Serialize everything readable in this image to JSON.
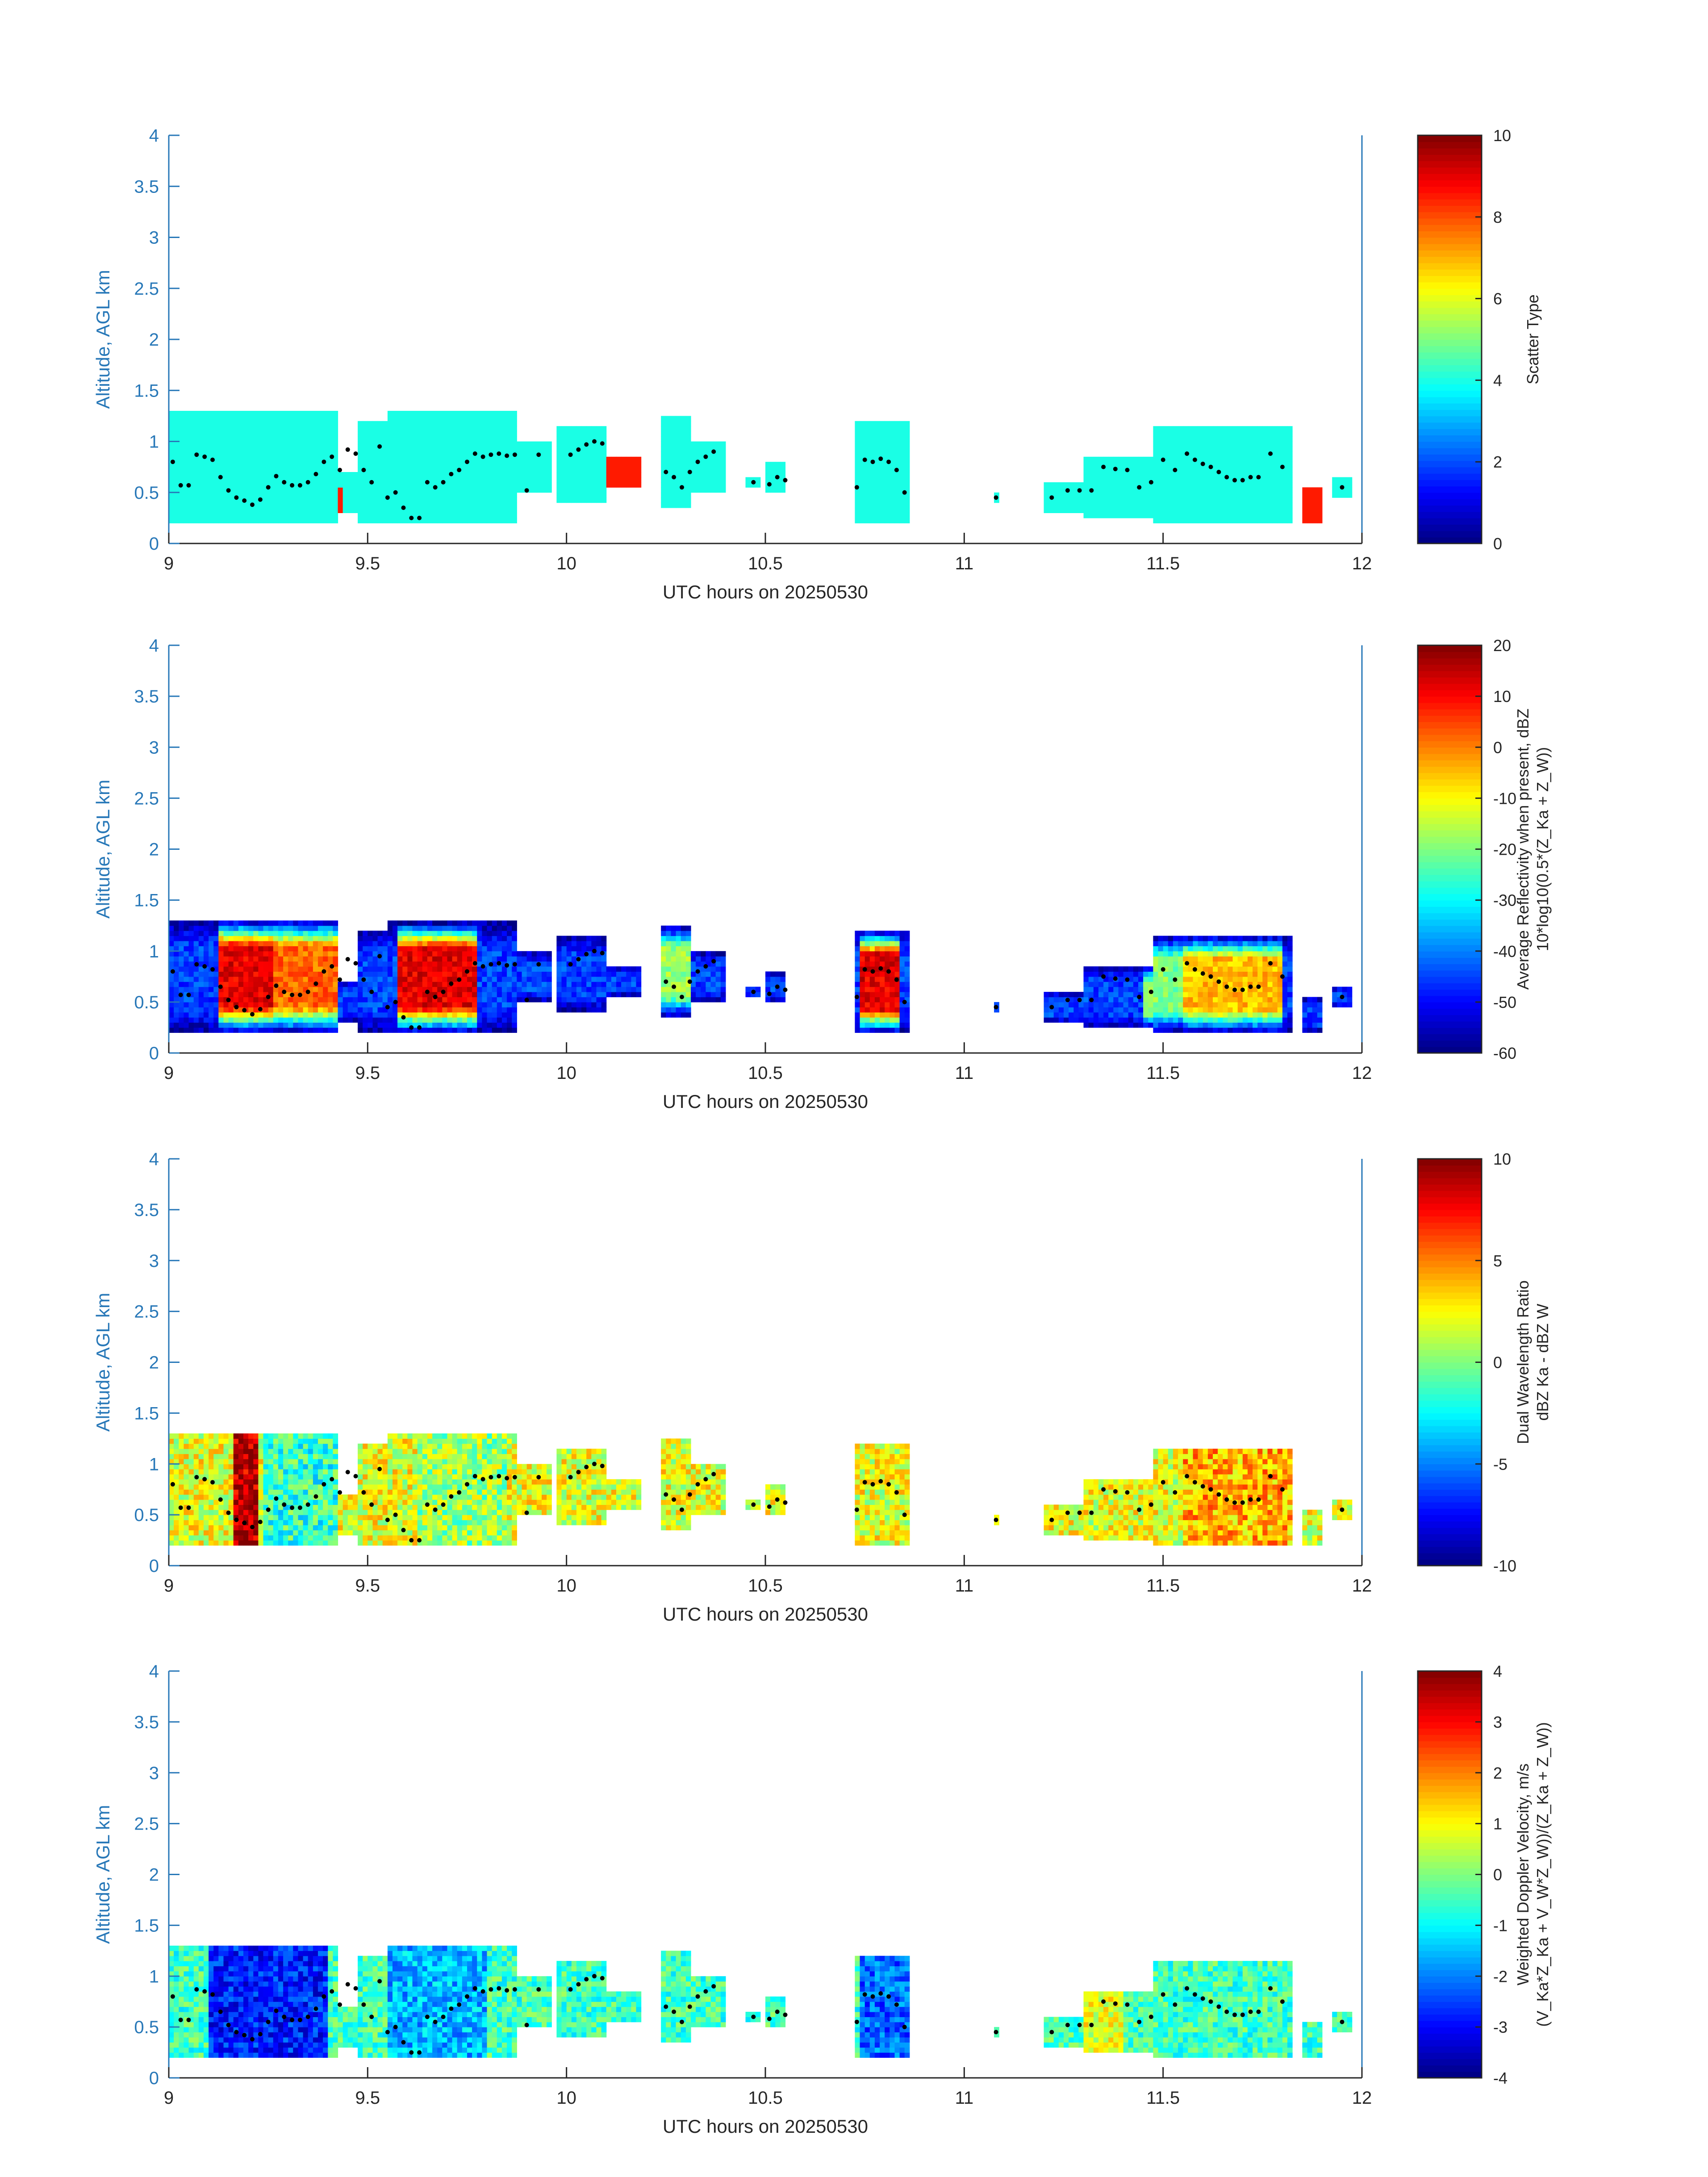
{
  "figure": {
    "y_tick_labels": [
      "0",
      "0.5",
      "1",
      "1.5",
      "2",
      "2.5",
      "3",
      "3.5",
      "4"
    ],
    "x_tick_labels": [
      "9",
      "9.5",
      "10",
      "10.5",
      "11",
      "11.5",
      "12"
    ]
  },
  "chart_data": [
    {
      "type": "heatmap",
      "title": "",
      "xlabel": "UTC hours on 20250530",
      "ylabel": "Altitude, AGL km",
      "xlim": [
        9,
        12
      ],
      "ylim": [
        0,
        4
      ],
      "colorbar": {
        "label_lines": [
          "Scatter Type"
        ],
        "range": [
          0,
          10
        ],
        "ticks": [
          "0",
          "2",
          "4",
          "6",
          "8",
          "10"
        ]
      },
      "field": "scatter_type",
      "cloud_top_dots": true
    },
    {
      "type": "heatmap",
      "title": "",
      "xlabel": "UTC hours on 20250530",
      "ylabel": "Altitude, AGL km",
      "xlim": [
        9,
        12
      ],
      "ylim": [
        0,
        4
      ],
      "colorbar": {
        "label_lines": [
          "Average Reflectivity when present, dBZ",
          "10*log10(0.5*(Z_Ka + Z_W))"
        ],
        "range": [
          -60,
          20
        ],
        "ticks": [
          "-60",
          "-50",
          "-40",
          "-30",
          "-20",
          "-10",
          "0",
          "10",
          "20"
        ]
      },
      "field": "reflectivity",
      "cloud_top_dots": true
    },
    {
      "type": "heatmap",
      "title": "",
      "xlabel": "UTC hours on 20250530",
      "ylabel": "Altitude, AGL km",
      "xlim": [
        9,
        12
      ],
      "ylim": [
        0,
        4
      ],
      "colorbar": {
        "label_lines": [
          "Dual Wavelength Ratio",
          "dBZ Ka - dBZ W"
        ],
        "range": [
          -10,
          10
        ],
        "ticks": [
          "-10",
          "-5",
          "0",
          "5",
          "10"
        ]
      },
      "field": "dwr",
      "cloud_top_dots": true
    },
    {
      "type": "heatmap",
      "title": "",
      "xlabel": "UTC hours on 20250530",
      "ylabel": "Altitude, AGL km",
      "xlim": [
        9,
        12
      ],
      "ylim": [
        0,
        4
      ],
      "colorbar": {
        "label_lines": [
          "Weighted Doppler Velocity, m/s",
          "(V_Ka*Z_Ka + V_W*Z_W))/(Z_Ka + Z_W))"
        ],
        "range": [
          -4,
          4
        ],
        "ticks": [
          "-4",
          "-3",
          "-2",
          "-1",
          "0",
          "1",
          "2",
          "3",
          "4"
        ]
      },
      "field": "velocity",
      "cloud_top_dots": true
    }
  ],
  "echo_segments": [
    {
      "t0": 9.0,
      "t1": 9.42,
      "top": 1.3,
      "base": 0.2
    },
    {
      "t0": 9.42,
      "t1": 9.47,
      "top": 0.7,
      "base": 0.3
    },
    {
      "t0": 9.47,
      "t1": 9.55,
      "top": 1.2,
      "base": 0.2
    },
    {
      "t0": 9.55,
      "t1": 9.88,
      "top": 1.28,
      "base": 0.2
    },
    {
      "t0": 9.88,
      "t1": 9.96,
      "top": 1.0,
      "base": 0.5
    },
    {
      "t0": 9.98,
      "t1": 10.1,
      "top": 1.15,
      "base": 0.4
    },
    {
      "t0": 10.1,
      "t1": 10.19,
      "top": 0.85,
      "base": 0.55
    },
    {
      "t0": 10.24,
      "t1": 10.31,
      "top": 1.25,
      "base": 0.35
    },
    {
      "t0": 10.31,
      "t1": 10.4,
      "top": 1.0,
      "base": 0.5
    },
    {
      "t0": 10.45,
      "t1": 10.49,
      "top": 0.65,
      "base": 0.55
    },
    {
      "t0": 10.5,
      "t1": 10.55,
      "top": 0.8,
      "base": 0.5
    },
    {
      "t0": 10.72,
      "t1": 10.86,
      "top": 1.2,
      "base": 0.2
    },
    {
      "t0": 11.07,
      "t1": 11.09,
      "top": 0.5,
      "base": 0.4
    },
    {
      "t0": 11.2,
      "t1": 11.3,
      "top": 0.6,
      "base": 0.3
    },
    {
      "t0": 11.3,
      "t1": 11.48,
      "top": 0.85,
      "base": 0.25
    },
    {
      "t0": 11.48,
      "t1": 11.82,
      "top": 1.15,
      "base": 0.2
    },
    {
      "t0": 11.85,
      "t1": 11.9,
      "top": 0.55,
      "base": 0.2
    },
    {
      "t0": 11.93,
      "t1": 11.97,
      "top": 0.65,
      "base": 0.45
    }
  ],
  "cloud_top_dots": [
    [
      9.01,
      0.8
    ],
    [
      9.03,
      0.57
    ],
    [
      9.05,
      0.57
    ],
    [
      9.07,
      0.87
    ],
    [
      9.09,
      0.85
    ],
    [
      9.11,
      0.82
    ],
    [
      9.13,
      0.65
    ],
    [
      9.15,
      0.52
    ],
    [
      9.17,
      0.45
    ],
    [
      9.19,
      0.42
    ],
    [
      9.21,
      0.38
    ],
    [
      9.23,
      0.43
    ],
    [
      9.25,
      0.55
    ],
    [
      9.27,
      0.66
    ],
    [
      9.29,
      0.6
    ],
    [
      9.31,
      0.57
    ],
    [
      9.33,
      0.57
    ],
    [
      9.35,
      0.6
    ],
    [
      9.37,
      0.68
    ],
    [
      9.39,
      0.8
    ],
    [
      9.41,
      0.85
    ],
    [
      9.43,
      0.72
    ],
    [
      9.45,
      0.92
    ],
    [
      9.47,
      0.88
    ],
    [
      9.49,
      0.72
    ],
    [
      9.51,
      0.6
    ],
    [
      9.53,
      0.95
    ],
    [
      9.55,
      0.45
    ],
    [
      9.57,
      0.5
    ],
    [
      9.59,
      0.35
    ],
    [
      9.61,
      0.25
    ],
    [
      9.63,
      0.25
    ],
    [
      9.65,
      0.6
    ],
    [
      9.67,
      0.55
    ],
    [
      9.69,
      0.6
    ],
    [
      9.71,
      0.68
    ],
    [
      9.73,
      0.72
    ],
    [
      9.75,
      0.8
    ],
    [
      9.77,
      0.88
    ],
    [
      9.79,
      0.85
    ],
    [
      9.81,
      0.87
    ],
    [
      9.83,
      0.88
    ],
    [
      9.85,
      0.86
    ],
    [
      9.87,
      0.87
    ],
    [
      9.9,
      0.52
    ],
    [
      9.93,
      0.87
    ],
    [
      10.01,
      0.87
    ],
    [
      10.03,
      0.92
    ],
    [
      10.05,
      0.97
    ],
    [
      10.07,
      1.0
    ],
    [
      10.09,
      0.98
    ],
    [
      10.25,
      0.7
    ],
    [
      10.27,
      0.65
    ],
    [
      10.29,
      0.55
    ],
    [
      10.31,
      0.7
    ],
    [
      10.33,
      0.8
    ],
    [
      10.35,
      0.85
    ],
    [
      10.37,
      0.9
    ],
    [
      10.47,
      0.6
    ],
    [
      10.51,
      0.58
    ],
    [
      10.53,
      0.65
    ],
    [
      10.55,
      0.62
    ],
    [
      10.73,
      0.55
    ],
    [
      10.75,
      0.82
    ],
    [
      10.77,
      0.8
    ],
    [
      10.79,
      0.83
    ],
    [
      10.81,
      0.8
    ],
    [
      10.83,
      0.72
    ],
    [
      10.85,
      0.5
    ],
    [
      11.08,
      0.45
    ],
    [
      11.22,
      0.45
    ],
    [
      11.26,
      0.52
    ],
    [
      11.29,
      0.52
    ],
    [
      11.32,
      0.52
    ],
    [
      11.35,
      0.75
    ],
    [
      11.38,
      0.73
    ],
    [
      11.41,
      0.72
    ],
    [
      11.44,
      0.55
    ],
    [
      11.47,
      0.6
    ],
    [
      11.5,
      0.82
    ],
    [
      11.53,
      0.72
    ],
    [
      11.56,
      0.88
    ],
    [
      11.58,
      0.82
    ],
    [
      11.6,
      0.78
    ],
    [
      11.62,
      0.75
    ],
    [
      11.64,
      0.7
    ],
    [
      11.66,
      0.65
    ],
    [
      11.68,
      0.62
    ],
    [
      11.7,
      0.62
    ],
    [
      11.72,
      0.65
    ],
    [
      11.74,
      0.65
    ],
    [
      11.77,
      0.88
    ],
    [
      11.8,
      0.75
    ],
    [
      11.95,
      0.55
    ]
  ]
}
